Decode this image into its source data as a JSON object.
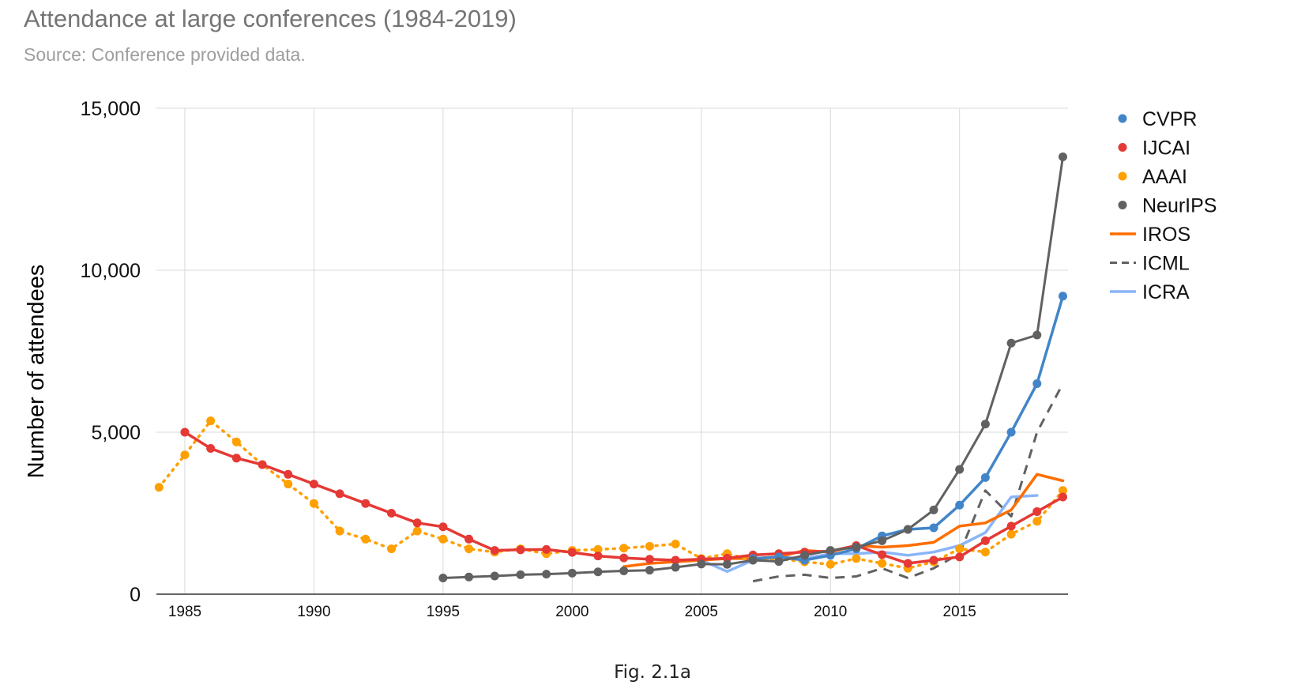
{
  "colors": {
    "CVPR": "#4285c8",
    "IJCAI": "#e53935",
    "AAAI": "#ff9f00",
    "NeurIPS": "#616161",
    "IROS": "#ff6d00",
    "ICML": "#616161",
    "ICRA": "#8ab4f8",
    "grid": "#d9d9d9",
    "axis": "#333333"
  },
  "figure": {
    "caption": "Fig. 2.1a"
  },
  "chart_data": {
    "type": "line",
    "title": "Attendance at large conferences (1984-2019)",
    "subtitle": "Source: Conference provided data.",
    "xlabel": "",
    "ylabel": "Number of attendees",
    "xlim": [
      1983.9,
      2019.2
    ],
    "ylim": [
      0,
      15000
    ],
    "x_ticks": [
      1985,
      1990,
      1995,
      2000,
      2005,
      2010,
      2015
    ],
    "y_ticks": [
      0,
      5000,
      10000,
      15000
    ],
    "y_tick_labels": [
      "0",
      "5,000",
      "10,000",
      "15,000"
    ],
    "legend_position": "right",
    "series": [
      {
        "name": "AAAI",
        "style": "dotted-markers",
        "x": [
          1984,
          1985,
          1986,
          1987,
          1988,
          1989,
          1990,
          1991,
          1992,
          1993,
          1994,
          1995,
          1996,
          1997,
          1998,
          1999,
          2000,
          2001,
          2002,
          2003,
          2004,
          2005,
          2006,
          2007,
          2008,
          2009,
          2010,
          2011,
          2012,
          2013,
          2014,
          2015,
          2016,
          2017,
          2018,
          2019
        ],
        "values": [
          3300,
          4300,
          5350,
          4700,
          4000,
          3400,
          2800,
          1950,
          1700,
          1400,
          1950,
          1700,
          1400,
          1300,
          1400,
          1250,
          1350,
          1380,
          1420,
          1480,
          1550,
          1100,
          1250,
          1050,
          1100,
          1000,
          920,
          1100,
          950,
          800,
          1000,
          1400,
          1300,
          1850,
          2250,
          3200
        ]
      },
      {
        "name": "IJCAI",
        "style": "solid-markers",
        "x": [
          1985,
          1986,
          1987,
          1988,
          1989,
          1990,
          1991,
          1992,
          1993,
          1994,
          1995,
          1996,
          1997,
          1998,
          1999,
          2000,
          2001,
          2002,
          2003,
          2004,
          2005,
          2006,
          2007,
          2008,
          2009,
          2010,
          2011,
          2012,
          2013,
          2014,
          2015,
          2016,
          2017,
          2018,
          2019
        ],
        "values": [
          5000,
          4500,
          4200,
          4000,
          3700,
          3400,
          3100,
          2800,
          2500,
          2200,
          2080,
          1700,
          1350,
          1370,
          1380,
          1290,
          1180,
          1120,
          1080,
          1050,
          1080,
          1110,
          1210,
          1250,
          1300,
          1330,
          1500,
          1220,
          950,
          1050,
          1150,
          1650,
          2100,
          2550,
          3000
        ]
      },
      {
        "name": "NeurIPS",
        "style": "solid-markers",
        "x": [
          1995,
          1996,
          1997,
          1998,
          1999,
          2000,
          2001,
          2002,
          2003,
          2004,
          2005,
          2006,
          2007,
          2008,
          2009,
          2010,
          2011,
          2012,
          2013,
          2014,
          2015,
          2016,
          2017,
          2018,
          2019
        ],
        "values": [
          500,
          530,
          560,
          600,
          620,
          650,
          690,
          720,
          740,
          830,
          930,
          920,
          1050,
          1010,
          1200,
          1350,
          1450,
          1650,
          2000,
          2600,
          3850,
          5250,
          7750,
          8000,
          13500
        ]
      },
      {
        "name": "CVPR",
        "style": "solid-markers",
        "x": [
          2007,
          2008,
          2009,
          2010,
          2011,
          2012,
          2013,
          2014,
          2015,
          2016,
          2017,
          2018,
          2019
        ],
        "values": [
          1100,
          1150,
          1050,
          1200,
          1400,
          1800,
          2000,
          2050,
          2750,
          3600,
          5000,
          6500,
          9200
        ]
      },
      {
        "name": "IROS",
        "style": "solid",
        "x": [
          2002,
          2003,
          2004,
          2005,
          2006,
          2007,
          2008,
          2009,
          2010,
          2011,
          2012,
          2013,
          2014,
          2015,
          2016,
          2017,
          2018,
          2019
        ],
        "values": [
          850,
          950,
          1000,
          1050,
          1100,
          1100,
          1150,
          1350,
          1300,
          1500,
          1450,
          1500,
          1600,
          2100,
          2200,
          2600,
          3700,
          3500
        ]
      },
      {
        "name": "ICML",
        "style": "dashed",
        "x": [
          2007,
          2008,
          2009,
          2010,
          2011,
          2012,
          2013,
          2014,
          2015,
          2016,
          2017,
          2018,
          2019
        ],
        "values": [
          400,
          550,
          600,
          500,
          550,
          800,
          500,
          800,
          1250,
          3200,
          2400,
          5000,
          6500
        ]
      },
      {
        "name": "ICRA",
        "style": "solid-light",
        "x": [
          2005,
          2006,
          2007,
          2008,
          2009,
          2010,
          2011,
          2012,
          2013,
          2014,
          2015,
          2016,
          2017,
          2018
        ],
        "values": [
          1050,
          700,
          1050,
          1150,
          1100,
          1250,
          1250,
          1300,
          1200,
          1300,
          1500,
          1900,
          3000,
          3050
        ]
      }
    ],
    "legend": [
      {
        "name": "CVPR",
        "symbol": "dot"
      },
      {
        "name": "IJCAI",
        "symbol": "dot"
      },
      {
        "name": "AAAI",
        "symbol": "dot"
      },
      {
        "name": "NeurIPS",
        "symbol": "dot"
      },
      {
        "name": "IROS",
        "symbol": "line"
      },
      {
        "name": "ICML",
        "symbol": "dash"
      },
      {
        "name": "ICRA",
        "symbol": "line"
      }
    ]
  }
}
